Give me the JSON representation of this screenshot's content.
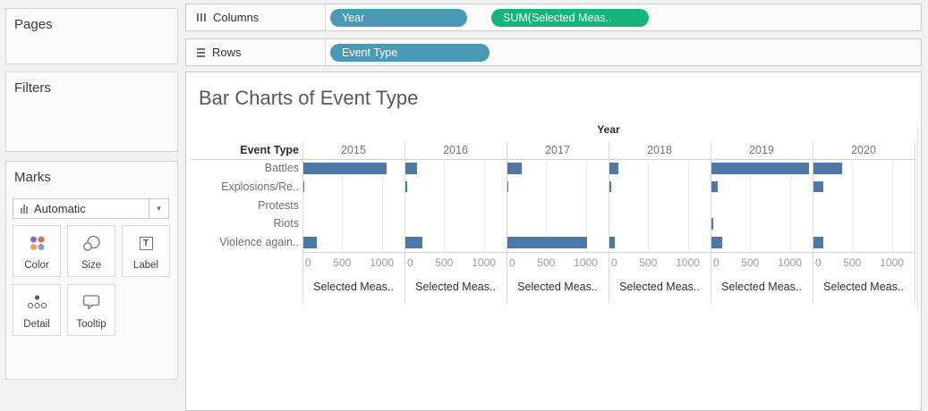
{
  "sidebar": {
    "pages_label": "Pages",
    "filters_label": "Filters",
    "marks": {
      "label": "Marks",
      "mark_type": "Automatic",
      "dropdown_caret": "▾",
      "buttons": [
        {
          "label": "Color"
        },
        {
          "label": "Size"
        },
        {
          "label": "Label"
        },
        {
          "label": "Detail"
        },
        {
          "label": "Tooltip"
        }
      ],
      "color_icon_dots": [
        "#8a6fae",
        "#dd6a63",
        "#eea45f",
        "#7aa6d0"
      ]
    }
  },
  "shelves": {
    "columns": {
      "label": "Columns",
      "pills": [
        {
          "text": "Year",
          "color": "#4a9ab5"
        },
        {
          "text": "SUM(Selected Meas..",
          "color": "#17b37b"
        }
      ]
    },
    "rows": {
      "label": "Rows",
      "pills": [
        {
          "text": "Event Type",
          "color": "#4a9ab5"
        }
      ]
    }
  },
  "chart_data": {
    "type": "bar",
    "title": "Bar Charts of Event Type",
    "col_header": "Year",
    "row_header": "Event Type",
    "categories": [
      "Battles",
      "Explosions/Re..",
      "Protests",
      "Riots",
      "Violence again.."
    ],
    "series": [
      {
        "year": "2015",
        "values": [
          1050,
          15,
          0,
          0,
          170
        ]
      },
      {
        "year": "2016",
        "values": [
          150,
          20,
          0,
          0,
          215
        ]
      },
      {
        "year": "2017",
        "values": [
          185,
          15,
          0,
          0,
          1010
        ]
      },
      {
        "year": "2018",
        "values": [
          115,
          20,
          0,
          0,
          65
        ]
      },
      {
        "year": "2019",
        "values": [
          1230,
          80,
          0,
          20,
          130
        ]
      },
      {
        "year": "2020",
        "values": [
          365,
          120,
          0,
          0,
          125
        ]
      }
    ],
    "x_ticks": [
      0,
      500,
      1000
    ],
    "xlim": [
      0,
      1285
    ],
    "axis_label": "Selected Meas..",
    "bar_color": "#4e79a7",
    "grid": "vertical-only",
    "legend": "none"
  }
}
